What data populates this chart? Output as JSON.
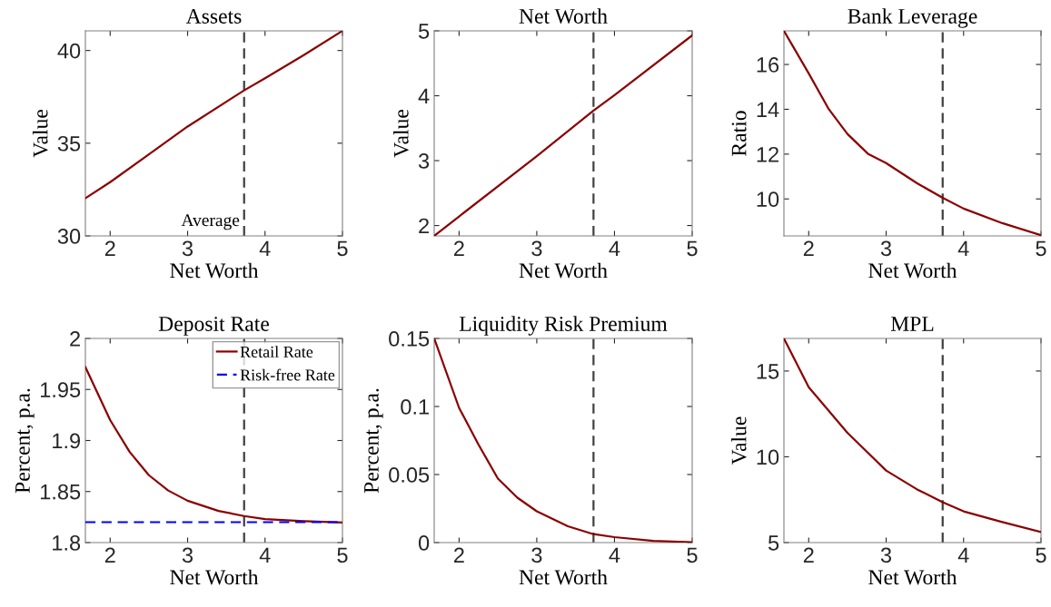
{
  "chart_data": [
    {
      "type": "line",
      "title": "Assets",
      "xlabel": "Net Worth",
      "ylabel": "Value",
      "xlim": [
        1.68,
        5
      ],
      "xticks": [
        2,
        3,
        4,
        5
      ],
      "ylim": [
        30,
        41.06
      ],
      "yticks": [
        30,
        35,
        40
      ],
      "grid": false,
      "line_style": "solid",
      "series": [
        {
          "color": "#8b0000",
          "x": [
            1.68,
            2,
            2.5,
            3,
            3.73,
            4,
            4.5,
            5
          ],
          "values": [
            32.03,
            32.9,
            34.4,
            35.9,
            37.85,
            38.5,
            39.75,
            41.06
          ]
        }
      ],
      "ref_lines": [
        {
          "axis": "x",
          "value": 3.73,
          "label": "Average",
          "color": "#404040",
          "line_style": "dashed"
        }
      ]
    },
    {
      "type": "line",
      "title": "Net Worth",
      "xlabel": "Net Worth",
      "ylabel": "Value",
      "xlim": [
        1.68,
        5
      ],
      "xticks": [
        2,
        3,
        4,
        5
      ],
      "ylim": [
        1.84,
        5
      ],
      "yticks": [
        2,
        3,
        4,
        5
      ],
      "grid": false,
      "line_style": "solid",
      "series": [
        {
          "color": "#8b0000",
          "x": [
            1.68,
            2,
            3,
            3.73,
            4,
            5
          ],
          "values": [
            1.84,
            2.14,
            3.07,
            3.77,
            4.01,
            4.93
          ]
        }
      ],
      "ref_lines": [
        {
          "axis": "x",
          "value": 3.73,
          "color": "#404040",
          "line_style": "dashed"
        }
      ]
    },
    {
      "type": "line",
      "title": "Bank Leverage",
      "xlabel": "Net Worth",
      "ylabel": "Ratio",
      "xlim": [
        1.68,
        5
      ],
      "xticks": [
        2,
        3,
        4,
        5
      ],
      "ylim": [
        8.35,
        17.5
      ],
      "yticks": [
        10,
        12,
        14,
        16
      ],
      "grid": false,
      "line_style": "solid",
      "series": [
        {
          "color": "#8b0000",
          "x": [
            1.68,
            2,
            2.26,
            2.5,
            2.77,
            3,
            3.4,
            3.73,
            4,
            4.5,
            5
          ],
          "values": [
            17.5,
            15.6,
            14,
            12.9,
            12,
            11.6,
            10.7,
            10.05,
            9.57,
            8.92,
            8.38
          ]
        }
      ],
      "ref_lines": [
        {
          "axis": "x",
          "value": 3.73,
          "color": "#404040",
          "line_style": "dashed"
        }
      ]
    },
    {
      "type": "line",
      "title": "Deposit Rate",
      "xlabel": "Net Worth",
      "ylabel": "Percent, p.a.",
      "xlim": [
        1.68,
        5
      ],
      "xticks": [
        2,
        3,
        4,
        5
      ],
      "ylim": [
        1.8,
        2
      ],
      "yticks": [
        1.8,
        1.85,
        1.9,
        1.95,
        2
      ],
      "grid": false,
      "legend": "top right",
      "series": [
        {
          "name": "Retail Rate",
          "color": "#8b0000",
          "line_style": "solid",
          "x": [
            1.68,
            2,
            2.25,
            2.5,
            2.75,
            3,
            3.4,
            3.73,
            4,
            4.5,
            5
          ],
          "values": [
            1.972,
            1.92,
            1.889,
            1.866,
            1.851,
            1.841,
            1.831,
            1.826,
            1.823,
            1.821,
            1.8196
          ]
        },
        {
          "name": "Risk-free Rate",
          "color": "#0000ff",
          "line_style": "dashed",
          "x": [
            1.68,
            5
          ],
          "values": [
            1.82,
            1.82
          ]
        }
      ],
      "ref_lines": [
        {
          "axis": "x",
          "value": 3.73,
          "color": "#404040",
          "line_style": "dashed"
        }
      ]
    },
    {
      "type": "line",
      "title": "Liquidity Risk Premium",
      "xlabel": "Net Worth",
      "ylabel": "Percent, p.a.",
      "xlim": [
        1.68,
        5
      ],
      "xticks": [
        2,
        3,
        4,
        5
      ],
      "ylim": [
        0,
        0.15
      ],
      "yticks": [
        0,
        0.05,
        0.1,
        0.15
      ],
      "grid": false,
      "line_style": "solid",
      "series": [
        {
          "color": "#8b0000",
          "x": [
            1.68,
            2,
            2.25,
            2.5,
            2.75,
            3,
            3.4,
            3.73,
            4,
            4.5,
            5
          ],
          "values": [
            0.15,
            0.099,
            0.072,
            0.047,
            0.033,
            0.023,
            0.012,
            0.0062,
            0.004,
            0.0013,
            0.0003
          ]
        }
      ],
      "ref_lines": [
        {
          "axis": "x",
          "value": 3.73,
          "color": "#404040",
          "line_style": "dashed"
        }
      ]
    },
    {
      "type": "line",
      "title": "MPL",
      "xlabel": "Net Worth",
      "ylabel": "Value",
      "xlim": [
        1.68,
        5
      ],
      "xticks": [
        2,
        3,
        4,
        5
      ],
      "ylim": [
        5,
        16.9
      ],
      "yticks": [
        5,
        10,
        15
      ],
      "grid": false,
      "line_style": "solid",
      "series": [
        {
          "color": "#8b0000",
          "x": [
            1.68,
            2,
            2.5,
            3,
            3.4,
            3.73,
            4,
            4.5,
            5
          ],
          "values": [
            16.9,
            14.06,
            11.4,
            9.2,
            8.1,
            7.35,
            6.82,
            6.2,
            5.62
          ]
        }
      ],
      "ref_lines": [
        {
          "axis": "x",
          "value": 3.73,
          "color": "#404040",
          "line_style": "dashed"
        }
      ]
    }
  ]
}
